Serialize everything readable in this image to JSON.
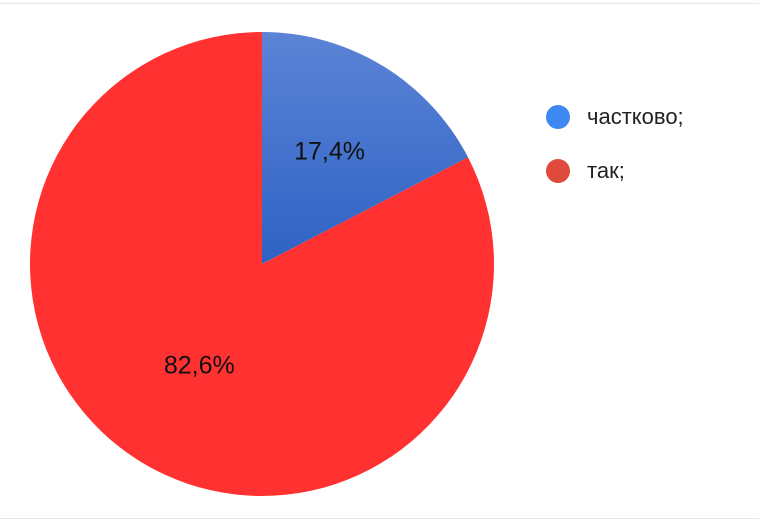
{
  "chart_data": {
    "type": "pie",
    "categories": [
      "частково;",
      "так;"
    ],
    "values": [
      17.4,
      82.6
    ],
    "value_labels": [
      "17,4%",
      "82,6%"
    ],
    "colors": [
      "#3a6bc9",
      "#ff3131"
    ],
    "legend": {
      "position": "right",
      "entries": [
        {
          "label": "частково;",
          "color": "#3d88f1"
        },
        {
          "label": "так;",
          "color": "#e04a3c"
        }
      ]
    },
    "start": "12 o'clock",
    "direction": "clockwise"
  }
}
